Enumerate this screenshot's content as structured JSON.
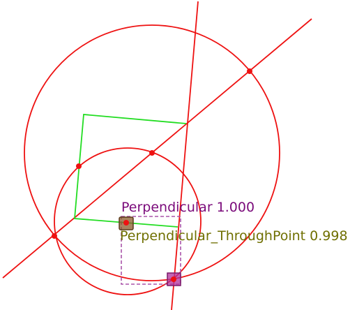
{
  "labels": {
    "perpendicular": "Perpendicular 1.000",
    "through_point": "Perpendicular_ThroughPoint 0.998"
  },
  "colors": {
    "construction": "#ee1111",
    "highlight": "#22dd22",
    "perpendicular_label": "#7a0a7a",
    "through_point_label": "#6f6f00",
    "box_outline": "#aa55aa",
    "marker_brown": "#8b5a2b",
    "marker_magenta": "#b0309a",
    "background": "#ffffff"
  }
}
